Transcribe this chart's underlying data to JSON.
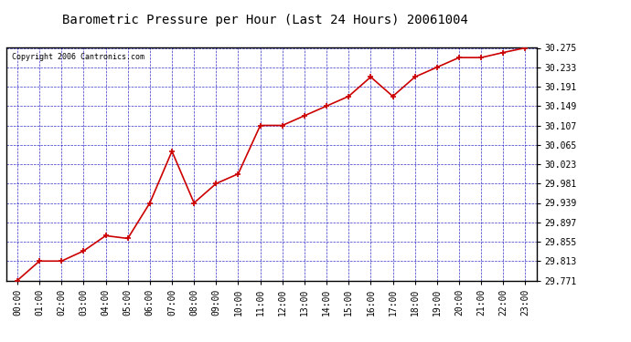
{
  "title": "Barometric Pressure per Hour (Last 24 Hours) 20061004",
  "copyright": "Copyright 2006 Cantronics.com",
  "hours": [
    "00:00",
    "01:00",
    "02:00",
    "03:00",
    "04:00",
    "05:00",
    "06:00",
    "07:00",
    "08:00",
    "09:00",
    "10:00",
    "11:00",
    "12:00",
    "13:00",
    "14:00",
    "15:00",
    "16:00",
    "17:00",
    "18:00",
    "19:00",
    "20:00",
    "21:00",
    "22:00",
    "23:00"
  ],
  "values": [
    29.771,
    29.813,
    29.813,
    29.835,
    29.868,
    29.862,
    29.939,
    30.051,
    29.939,
    29.981,
    30.002,
    30.107,
    30.107,
    30.128,
    30.149,
    30.17,
    30.212,
    30.17,
    30.212,
    30.233,
    30.254,
    30.254,
    30.265,
    30.275
  ],
  "ylim_min": 29.771,
  "ylim_max": 30.275,
  "yticks": [
    29.771,
    29.813,
    29.855,
    29.897,
    29.939,
    29.981,
    30.023,
    30.065,
    30.107,
    30.149,
    30.191,
    30.233,
    30.275
  ],
  "line_color": "#cc0000",
  "marker_color": "#cc0000",
  "bg_color": "#ffffff",
  "grid_color": "#0000bb",
  "title_color": "#000000",
  "axes_bg": "#ffffff",
  "fig_bg": "#ffffff",
  "title_fontsize": 10,
  "tick_fontsize": 7,
  "copyright_fontsize": 6
}
